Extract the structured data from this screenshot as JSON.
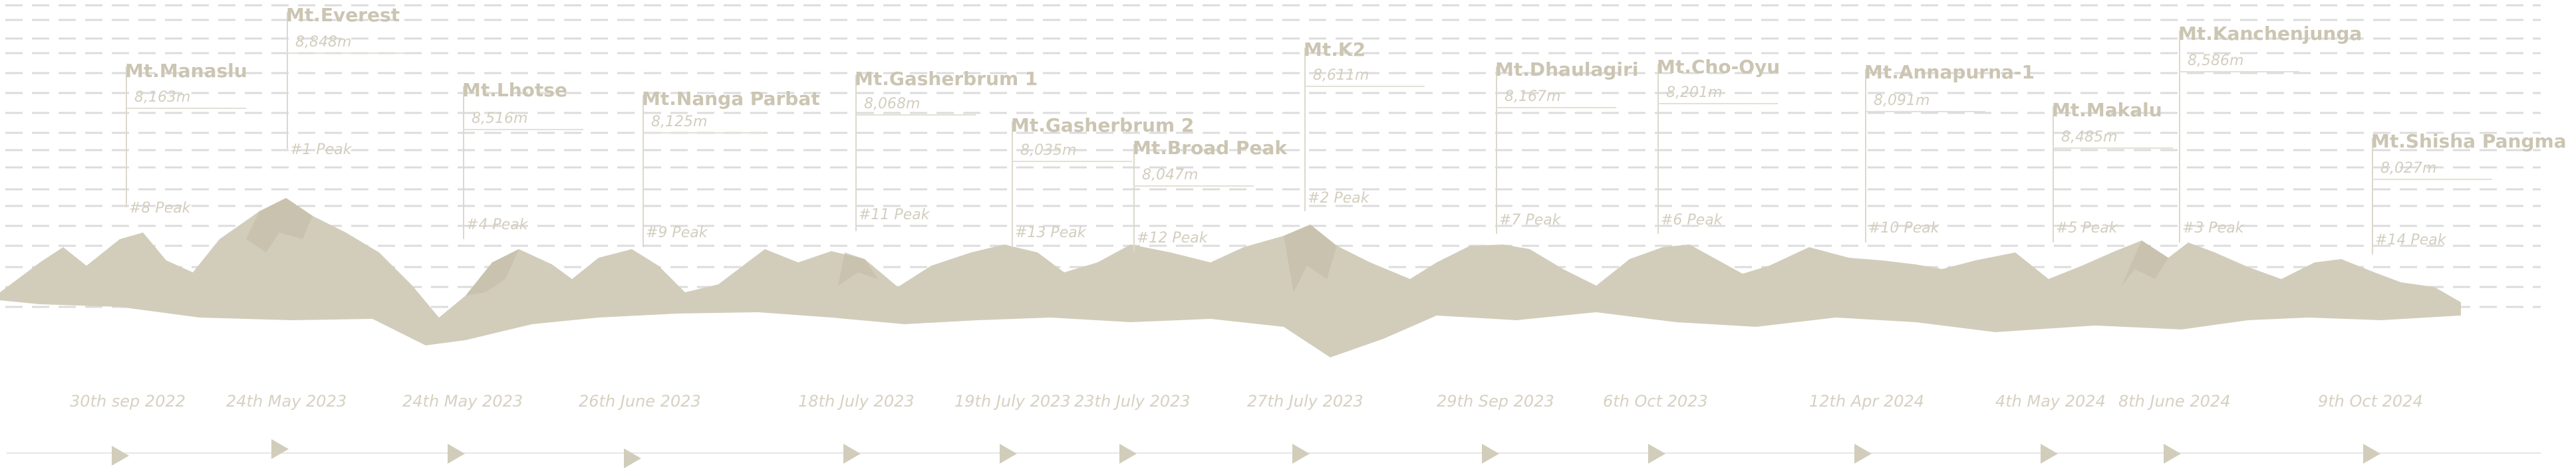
{
  "colors": {
    "mountain": "#d2cdbb",
    "mountain_dark": "#c3bda8",
    "label": "#cbc5b2",
    "line": "#dcdcdc",
    "marker": "#d2cdbb"
  },
  "summits": [
    {
      "name": "Mt.Manaslu",
      "height": "8,163m",
      "peak": "#8 Peak",
      "date": "30th sep 2022"
    },
    {
      "name": "Mt.Everest",
      "height": "8,848m",
      "peak": "#1 Peak",
      "date": "24th May 2023"
    },
    {
      "name": "Mt.Lhotse",
      "height": "8,516m",
      "peak": "#4 Peak",
      "date": "24th May 2023"
    },
    {
      "name": "Mt.Nanga Parbat",
      "height": "8,125m",
      "peak": "#9 Peak",
      "date": "26th June 2023"
    },
    {
      "name": "Mt.Gasherbrum 1",
      "height": "8,068m",
      "peak": "#11 Peak",
      "date": "18th July 2023"
    },
    {
      "name": "Mt.Gasherbrum 2",
      "height": "8,035m",
      "peak": "#13 Peak",
      "date": "19th July 2023"
    },
    {
      "name": "Mt.Broad Peak",
      "height": "8,047m",
      "peak": "#12 Peak",
      "date": "23th July 2023"
    },
    {
      "name": "Mt.K2",
      "height": "8,611m",
      "peak": "#2 Peak",
      "date": "27th July 2023"
    },
    {
      "name": "Mt.Dhaulagiri",
      "height": "8,167m",
      "peak": "#7 Peak",
      "date": "29th Sep 2023"
    },
    {
      "name": "Mt.Cho-Oyu",
      "height": "8,201m",
      "peak": "#6 Peak",
      "date": "6th Oct 2023"
    },
    {
      "name": "Mt.Annapurna-1",
      "height": "8,091m",
      "peak": "#10 Peak",
      "date": "12th Apr 2024"
    },
    {
      "name": "Mt.Makalu",
      "height": "8,485m",
      "peak": "#5 Peak",
      "date": "4th May 2024"
    },
    {
      "name": "Mt.Kanchenjunga",
      "height": "8,586m",
      "peak": "#3 Peak",
      "date": "8th June 2024"
    },
    {
      "name": "Mt.Shisha Pangma",
      "height": "8,027m",
      "peak": "#14 Peak",
      "date": "9th Oct 2024"
    }
  ]
}
